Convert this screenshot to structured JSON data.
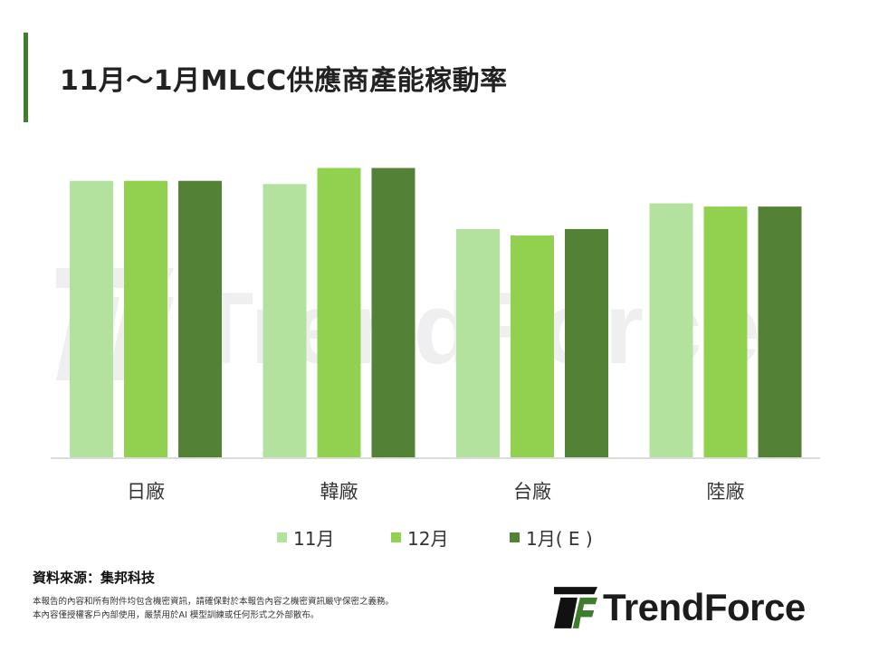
{
  "header": {
    "title": "11月～1月MLCC供應商產能稼動率"
  },
  "chart_data": {
    "type": "bar",
    "categories": [
      "日廠",
      "韓廠",
      "台廠",
      "陸廠"
    ],
    "series": [
      {
        "name": "11月",
        "values": [
          86,
          85,
          71,
          79
        ]
      },
      {
        "name": "12月",
        "values": [
          86,
          90,
          69,
          78
        ]
      },
      {
        "name": "1月( E )",
        "values": [
          86,
          90,
          71,
          78
        ]
      }
    ],
    "ylim": [
      0,
      100
    ],
    "grid": false,
    "legend": "bottom"
  },
  "colors": {
    "accent": "#3e7d2c",
    "series": [
      "#b3e29e",
      "#92d050",
      "#538135"
    ],
    "axis": "#d0d0d0"
  },
  "footer": {
    "source": "資料來源：集邦科技",
    "disclaimer_1": "本報告的內容和所有附件均包含機密資訊，請確保對於本報告內容之機密資訊嚴守保密之義務。",
    "disclaimer_2": "本內容僅授權客戶內部使用，嚴禁用於AI 模型訓練或任何形式之外部散布。"
  },
  "brand": {
    "name": "TrendForce",
    "watermark": "TrendForce",
    "logo_icon": "trendforce-logo-icon"
  }
}
